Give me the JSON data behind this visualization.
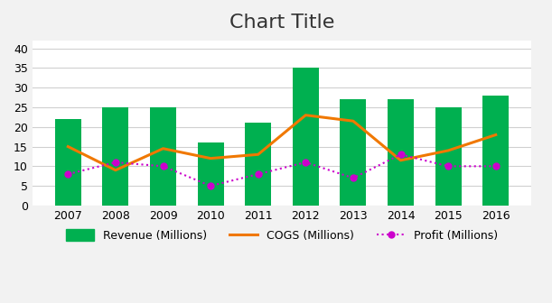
{
  "years": [
    2007,
    2008,
    2009,
    2010,
    2011,
    2012,
    2013,
    2014,
    2015,
    2016
  ],
  "revenue": [
    22,
    25,
    25,
    16,
    21,
    35,
    27,
    27,
    25,
    28
  ],
  "cogs": [
    15,
    9,
    14.5,
    12,
    13,
    23,
    21.5,
    11.5,
    14,
    18
  ],
  "profit": [
    8,
    11,
    10,
    5,
    8,
    11,
    7,
    13,
    10,
    10
  ],
  "bar_color": "#00b050",
  "cogs_color": "#f07800",
  "profit_color": "#cc00cc",
  "title": "Chart Title",
  "title_fontsize": 16,
  "ylim": [
    0,
    42
  ],
  "yticks": [
    0,
    5,
    10,
    15,
    20,
    25,
    30,
    35,
    40
  ],
  "legend_labels": [
    "Revenue (Millions)",
    "COGS (Millions)",
    "Profit (Millions)"
  ],
  "background_color": "#f2f2f2",
  "plot_bg_color": "#ffffff",
  "grid_color": "#d0d0d0"
}
